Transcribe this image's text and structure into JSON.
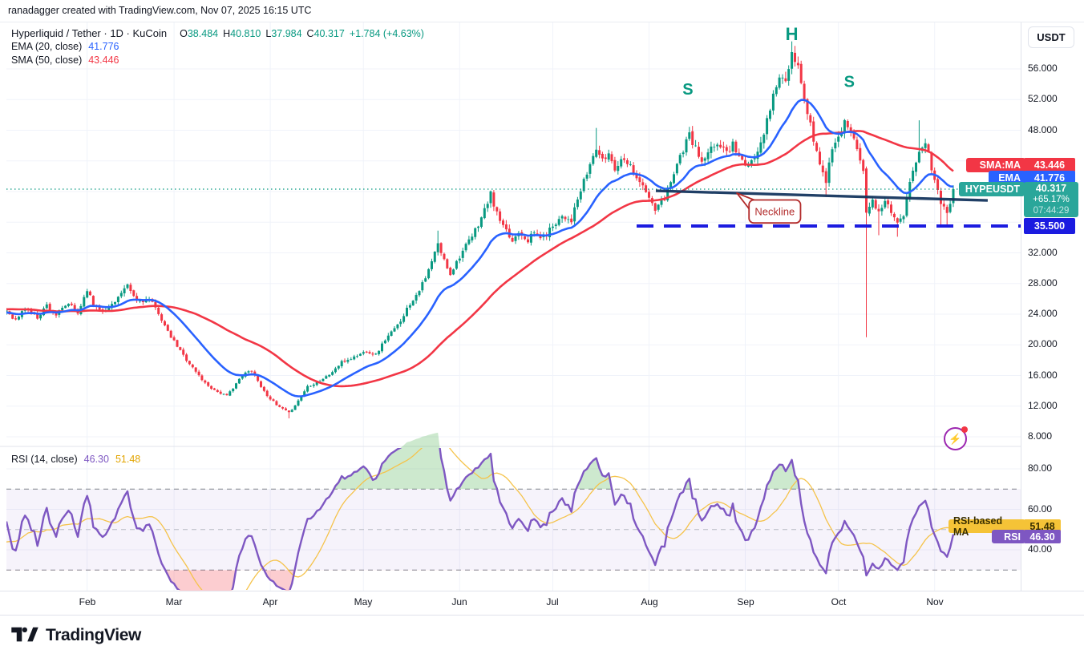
{
  "attribution": {
    "text": "ranadagger created with TradingView.com, Nov 07, 2025 16:15 UTC"
  },
  "legend": {
    "title": "Hyperliquid / Tether · 1D · KuCoin",
    "ohlc": [
      {
        "k": "O",
        "v": "38.484"
      },
      {
        "k": "H",
        "v": "40.810"
      },
      {
        "k": "L",
        "v": "37.984"
      },
      {
        "k": "C",
        "v": "40.317"
      }
    ],
    "change": "+1.784 (+4.63%)"
  },
  "ema_legend": {
    "label": "EMA (20, close)",
    "value": "41.776"
  },
  "sma_legend": {
    "label": "SMA (50, close)",
    "value": "43.446"
  },
  "rsi_legend": {
    "label": "RSI (14, close)",
    "rsi_value": "46.30",
    "ma_value": "51.48"
  },
  "price_scale": {
    "currency": "USDT",
    "ticks": [
      {
        "label": "56.000",
        "price": 56
      },
      {
        "label": "52.000",
        "price": 52
      },
      {
        "label": "48.000",
        "price": 48
      },
      {
        "label": "32.000",
        "price": 32
      },
      {
        "label": "28.000",
        "price": 28
      },
      {
        "label": "24.000",
        "price": 24
      },
      {
        "label": "20.000",
        "price": 20
      },
      {
        "label": "16.000",
        "price": 16
      },
      {
        "label": "12.000",
        "price": 12
      },
      {
        "label": "8.000",
        "price": 8
      }
    ]
  },
  "rsi_scale": {
    "ticks": [
      {
        "label": "80.00",
        "value": 80
      },
      {
        "label": "60.00",
        "value": 60
      },
      {
        "label": "40.00",
        "value": 40
      }
    ]
  },
  "badges": {
    "sma": {
      "label": "SMA:MA",
      "value": "43.446",
      "price": 43.446,
      "color": "#F23645"
    },
    "ema": {
      "label": "EMA",
      "value": "41.776",
      "price": 41.776,
      "color": "#2962FF"
    },
    "hype": {
      "label": "HYPEUSDT",
      "price_text": "40.317",
      "price": 40.317,
      "change": "+65.17%",
      "countdown": "07:44:29",
      "color": "#2AA69A"
    },
    "support": {
      "value": "35.500",
      "price": 35.5,
      "color": "#1B1BE0"
    },
    "rsi_ma": {
      "label": "RSI-based MA",
      "value": "51.48",
      "rsi": 51.48,
      "color": "#F5C337",
      "text": "#3A3000"
    },
    "rsi": {
      "label": "RSI",
      "value": "46.30",
      "rsi": 46.3,
      "color": "#7E57C2"
    }
  },
  "annotations": {
    "s1": {
      "text": "S",
      "day": 219.5,
      "price": 53.3
    },
    "h": {
      "text": "H",
      "day": 253.0,
      "price": 60.4
    },
    "s2": {
      "text": "S",
      "day": 271.5,
      "price": 54.3
    },
    "neckline_label": "Neckline",
    "callout": {
      "tip_day": 235.3,
      "tip_price": 39.8,
      "box_from_day": 239.2,
      "box_to_day": 255.8,
      "box_top_price": 38.9,
      "box_bot_price": 35.9
    }
  },
  "logo": {
    "text": "TradingView"
  },
  "colors": {
    "up": "#089981",
    "down": "#F23645",
    "ema": "#2962FF",
    "sma": "#F23645",
    "rsi": "#7E57C2",
    "rsi_ma": "#F5C34B",
    "neckline": "#15355E",
    "support": "#1B1BE0",
    "grid": "#F0F3FA",
    "divider": "#E0E3EB",
    "axis_text": "#131722",
    "band_fill": "rgba(126,87,194,0.07)",
    "over_fill": "rgba(76,175,80,0.28)",
    "under_fill": "rgba(242,54,69,0.25)",
    "teal": "#089981",
    "callout_red": "#B22A2A",
    "price_line": "#089981"
  },
  "chart_data": {
    "type": "candlestick",
    "symbol": "HYPEUSDT",
    "exchange": "KuCoin",
    "timeframe": "1D",
    "current_bar": {
      "open": 38.484,
      "high": 40.81,
      "low": 37.984,
      "close": 40.317,
      "change": 1.784,
      "change_pct": 4.63
    },
    "indicators": {
      "ema": {
        "period": 20,
        "value": 41.776
      },
      "sma": {
        "period": 50,
        "value": 43.446
      },
      "rsi": {
        "period": 14,
        "value": 46.3,
        "ma_value": 51.48,
        "levels": [
          70,
          50,
          30
        ],
        "visible_range": [
          80,
          60,
          40
        ]
      }
    },
    "price_axis": {
      "min": 8,
      "max": 56,
      "grid_step": 4
    },
    "support_level": 35.5,
    "neckline": {
      "from_day": 209.2,
      "from_price": 40.1,
      "to_day": 316.1,
      "to_price": 38.84
    },
    "head_shoulders": {
      "left_shoulder_day": 220,
      "head_day": 253,
      "right_shoulder_day": 270,
      "head_high": 59.6
    },
    "months": [
      {
        "label": "Feb",
        "day": 26
      },
      {
        "label": "Mar",
        "day": 54
      },
      {
        "label": "Apr",
        "day": 85
      },
      {
        "label": "May",
        "day": 115
      },
      {
        "label": "Jun",
        "day": 146
      },
      {
        "label": "Jul",
        "day": 176
      },
      {
        "label": "Aug",
        "day": 207
      },
      {
        "label": "Sep",
        "day": 238
      },
      {
        "label": "Oct",
        "day": 268
      },
      {
        "label": "Nov",
        "day": 299
      }
    ],
    "days": 306,
    "pre_anchors": [
      [
        -60,
        21.5
      ],
      [
        -50,
        23.0
      ],
      [
        -40,
        26.0
      ],
      [
        -30,
        24.5
      ],
      [
        -20,
        25.5
      ],
      [
        -10,
        23.5
      ],
      [
        -1,
        24.2
      ]
    ],
    "price_anchors": [
      [
        0,
        24.5
      ],
      [
        3,
        23.2
      ],
      [
        6,
        24.8
      ],
      [
        10,
        23.6
      ],
      [
        13,
        25.2
      ],
      [
        16,
        23.9
      ],
      [
        20,
        25.4
      ],
      [
        23,
        24.1
      ],
      [
        26,
        27.3
      ],
      [
        28,
        25.2
      ],
      [
        32,
        24.4
      ],
      [
        35,
        25.8
      ],
      [
        39,
        27.6
      ],
      [
        42,
        25.7
      ],
      [
        46,
        25.9
      ],
      [
        49,
        24.2
      ],
      [
        52,
        21.6
      ],
      [
        56,
        19.2
      ],
      [
        60,
        17.0
      ],
      [
        64,
        15.0
      ],
      [
        67,
        14.1
      ],
      [
        71,
        13.3
      ],
      [
        74,
        15.0
      ],
      [
        77,
        16.3
      ],
      [
        79,
        16.7
      ],
      [
        83,
        13.9
      ],
      [
        87,
        12.1
      ],
      [
        91,
        11.1
      ],
      [
        94,
        12.7
      ],
      [
        97,
        14.6
      ],
      [
        101,
        15.3
      ],
      [
        104,
        16.1
      ],
      [
        108,
        17.7
      ],
      [
        112,
        18.4
      ],
      [
        116,
        19.2
      ],
      [
        119,
        18.7
      ],
      [
        122,
        20.7
      ],
      [
        126,
        22.5
      ],
      [
        129,
        24.7
      ],
      [
        132,
        26.6
      ],
      [
        135,
        28.6
      ],
      [
        139,
        33.1
      ],
      [
        141,
        31.0
      ],
      [
        143,
        29.3
      ],
      [
        146,
        31.6
      ],
      [
        150,
        34.1
      ],
      [
        153,
        36.6
      ],
      [
        156,
        39.6
      ],
      [
        158,
        37.1
      ],
      [
        160,
        35.3
      ],
      [
        163,
        33.5
      ],
      [
        165,
        34.9
      ],
      [
        168,
        33.7
      ],
      [
        170,
        34.6
      ],
      [
        173,
        33.9
      ],
      [
        176,
        35.6
      ],
      [
        179,
        36.9
      ],
      [
        182,
        36.3
      ],
      [
        184,
        38.9
      ],
      [
        188,
        43.5
      ],
      [
        190,
        45.7
      ],
      [
        192,
        43.9
      ],
      [
        194,
        45.0
      ],
      [
        196,
        43.1
      ],
      [
        199,
        44.6
      ],
      [
        202,
        42.7
      ],
      [
        204,
        41.3
      ],
      [
        207,
        39.1
      ],
      [
        209,
        37.6
      ],
      [
        212,
        39.0
      ],
      [
        214,
        41.6
      ],
      [
        217,
        44.6
      ],
      [
        220,
        47.3
      ],
      [
        222,
        45.6
      ],
      [
        224,
        43.7
      ],
      [
        227,
        45.4
      ],
      [
        229,
        46.4
      ],
      [
        232,
        45.1
      ],
      [
        234,
        46.3
      ],
      [
        237,
        43.9
      ],
      [
        239,
        43.0
      ],
      [
        242,
        45.6
      ],
      [
        245,
        49.1
      ],
      [
        247,
        52.6
      ],
      [
        249,
        55.1
      ],
      [
        251,
        54.1
      ],
      [
        253,
        57.6
      ],
      [
        255,
        56.1
      ],
      [
        257,
        52.1
      ],
      [
        259,
        48.6
      ],
      [
        262,
        43.6
      ],
      [
        264,
        41.1
      ],
      [
        265,
        44.1
      ],
      [
        267,
        46.6
      ],
      [
        270,
        48.9
      ],
      [
        272,
        48.1
      ],
      [
        274,
        45.6
      ],
      [
        276,
        43.1
      ],
      [
        277,
        37.6
      ],
      [
        279,
        38.6
      ],
      [
        281,
        37.1
      ],
      [
        283,
        38.9
      ],
      [
        285,
        37.6
      ],
      [
        287,
        35.9
      ],
      [
        289,
        36.6
      ],
      [
        290,
        39.1
      ],
      [
        292,
        42.6
      ],
      [
        294,
        45.6
      ],
      [
        296,
        46.6
      ],
      [
        298,
        43.1
      ],
      [
        300,
        40.6
      ],
      [
        301,
        38.1
      ],
      [
        303,
        37.6
      ],
      [
        304,
        38.5
      ],
      [
        305,
        40.317
      ]
    ],
    "wick_overrides": {
      "91": {
        "l": 10.4
      },
      "139": {
        "h": 34.9
      },
      "190": {
        "h": 48.3
      },
      "253": {
        "h": 59.6
      },
      "264": {
        "l": 39.3
      },
      "277": {
        "o": 43.0,
        "l": 21.0
      },
      "281": {
        "l": 34.3
      },
      "287": {
        "l": 34.1
      },
      "294": {
        "h": 49.3
      },
      "301": {
        "l": 35.4
      },
      "303": {
        "l": 35.7
      },
      "305": {
        "o": 38.484,
        "h": 40.81,
        "l": 37.984,
        "c": 40.317
      }
    }
  }
}
